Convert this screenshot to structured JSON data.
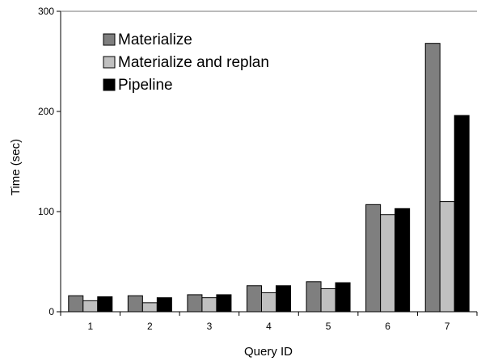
{
  "chart_data": {
    "type": "bar",
    "categories": [
      "1",
      "2",
      "3",
      "4",
      "5",
      "6",
      "7"
    ],
    "series": [
      {
        "name": "Materialize",
        "values": [
          16,
          16,
          17,
          26,
          30,
          107,
          268
        ],
        "color": "#7f7f7f"
      },
      {
        "name": "Materialize and replan",
        "values": [
          11,
          9,
          14,
          19,
          23,
          97,
          110
        ],
        "color": "#c0c0c0"
      },
      {
        "name": "Pipeline",
        "values": [
          15,
          14,
          17,
          26,
          29,
          103,
          196
        ],
        "color": "#000000"
      }
    ],
    "xlabel": "Query ID",
    "ylabel": "Time (sec)",
    "ylim": [
      0,
      300
    ],
    "yticks": [
      0,
      100,
      200,
      300
    ],
    "grid": false,
    "legend_position": "top-left"
  }
}
